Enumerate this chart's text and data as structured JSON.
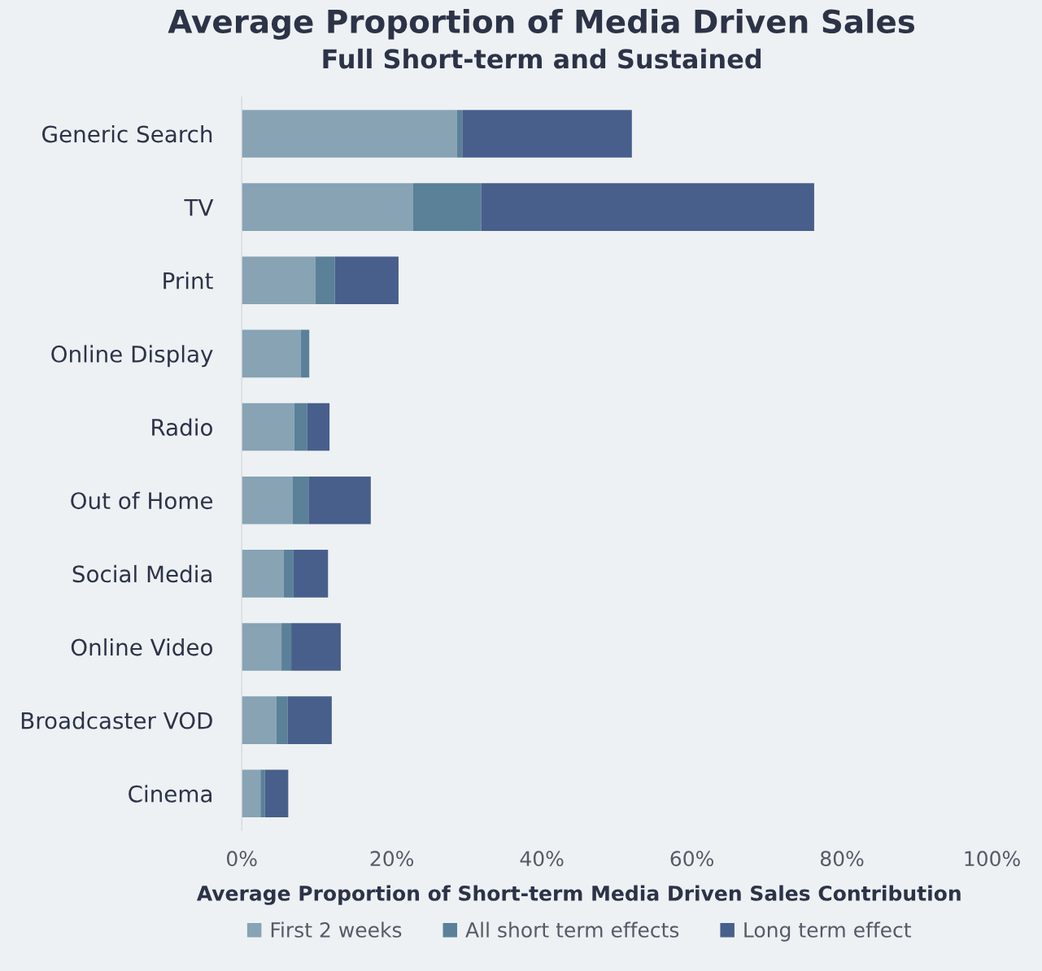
{
  "chart_data": {
    "type": "bar",
    "orientation": "horizontal",
    "stacked": true,
    "title": "Average Proportion of Media Driven Sales",
    "subtitle": "Full Short-term and Sustained",
    "xlabel": "Average Proportion of Short-term Media Driven Sales Contribution",
    "categories": [
      "Generic Search",
      "TV",
      "Print",
      "Online Display",
      "Radio",
      "Out of Home",
      "Social Media",
      "Online Video",
      "Broadcaster VOD",
      "Cinema"
    ],
    "series": [
      {
        "name": "First 2 weeks",
        "color": "#87a3b4",
        "values": [
          28.7,
          22.8,
          9.8,
          7.9,
          7.0,
          6.8,
          5.6,
          5.3,
          4.6,
          2.5
        ]
      },
      {
        "name": "All short term effects",
        "color": "#5a8198",
        "values": [
          0.7,
          9.1,
          2.6,
          1.1,
          1.7,
          2.1,
          1.3,
          1.3,
          1.5,
          0.6
        ]
      },
      {
        "name": "Long term effect",
        "color": "#485f8c",
        "values": [
          22.6,
          44.4,
          8.5,
          0,
          3.0,
          8.3,
          4.6,
          6.6,
          5.9,
          3.1
        ]
      }
    ],
    "xlim": [
      0,
      100
    ],
    "xticks": [
      {
        "value": 0,
        "label": "0%"
      },
      {
        "value": 20,
        "label": "20%"
      },
      {
        "value": 40,
        "label": "40%"
      },
      {
        "value": 60,
        "label": "60%"
      },
      {
        "value": 80,
        "label": "80%"
      },
      {
        "value": 100,
        "label": "100%"
      }
    ],
    "grid": false,
    "legend": "bottom"
  }
}
